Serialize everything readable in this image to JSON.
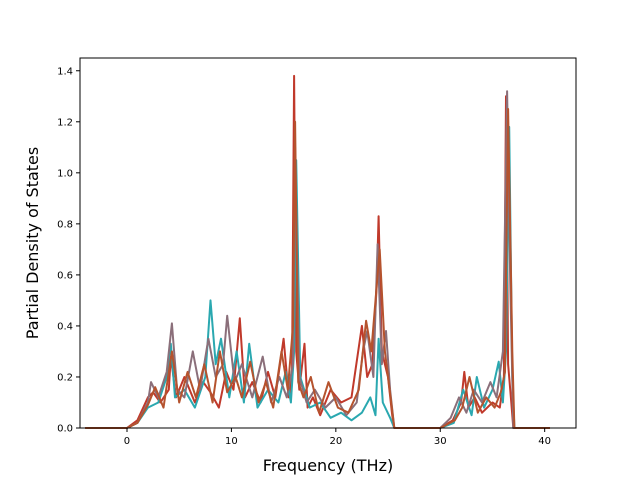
{
  "chart_data": {
    "type": "line",
    "title": "",
    "xlabel": "Frequency (THz)",
    "ylabel": "Partial Density of States",
    "xlim": [
      -4.5,
      43
    ],
    "ylim": [
      0,
      1.45
    ],
    "xticks": [
      0,
      10,
      20,
      30,
      40
    ],
    "yticks": [
      0.0,
      0.2,
      0.4,
      0.6,
      0.8,
      1.0,
      1.2,
      1.4
    ],
    "xtick_labels": [
      "0",
      "10",
      "20",
      "30",
      "40"
    ],
    "ytick_labels": [
      "0.0",
      "0.2",
      "0.4",
      "0.6",
      "0.8",
      "1.0",
      "1.2",
      "1.4"
    ],
    "grid": false,
    "legend": "none",
    "colors": [
      "#c0392b",
      "#2aa8b0",
      "#8b6f7a",
      "#b5532e"
    ],
    "series": [
      {
        "color": "#c0392b",
        "x": [
          -4,
          0,
          1,
          2,
          2.5,
          3.2,
          4.0,
          4.2,
          4.7,
          5.5,
          6.5,
          7.3,
          8.0,
          8.8,
          9.5,
          10.2,
          10.8,
          11.3,
          12.0,
          12.8,
          13.5,
          14.2,
          15.0,
          15.5,
          15.8,
          16.0,
          16.2,
          16.5,
          17.0,
          17.3,
          17.8,
          18.5,
          19.5,
          20.5,
          21.5,
          22.5,
          23.0,
          23.5,
          23.9,
          24.1,
          24.4,
          25.0,
          25.4,
          25.6,
          30,
          31.2,
          32.0,
          32.3,
          32.7,
          33.3,
          34.0,
          35.0,
          35.7,
          36.1,
          36.3,
          36.5,
          36.8,
          37.0,
          40.5
        ],
        "y": [
          0,
          0,
          0.03,
          0.12,
          0.14,
          0.1,
          0.15,
          0.28,
          0.12,
          0.2,
          0.1,
          0.18,
          0.14,
          0.08,
          0.22,
          0.15,
          0.43,
          0.12,
          0.18,
          0.1,
          0.22,
          0.12,
          0.35,
          0.12,
          0.2,
          1.38,
          0.3,
          0.15,
          0.33,
          0.08,
          0.12,
          0.05,
          0.15,
          0.1,
          0.12,
          0.4,
          0.2,
          0.25,
          0.55,
          0.83,
          0.3,
          0.2,
          0.05,
          0,
          0,
          0.03,
          0.1,
          0.22,
          0.08,
          0.12,
          0.06,
          0.1,
          0.08,
          0.2,
          1.3,
          0.25,
          0.1,
          0,
          0
        ]
      },
      {
        "color": "#2aa8b0",
        "x": [
          -4,
          0,
          1,
          2,
          3,
          3.8,
          4.2,
          4.6,
          5.5,
          6.5,
          7.5,
          8.0,
          8.5,
          9.0,
          9.8,
          10.5,
          11.2,
          11.7,
          12.5,
          13.5,
          14.5,
          15.2,
          15.7,
          16.0,
          16.2,
          16.6,
          17.5,
          18.5,
          19.5,
          20.5,
          21.5,
          22.5,
          23.3,
          23.8,
          24.1,
          24.5,
          25.2,
          25.6,
          30,
          31.3,
          32.2,
          33.0,
          33.5,
          34.2,
          35.0,
          35.6,
          36.0,
          36.3,
          36.6,
          36.9,
          37.1,
          40.5
        ],
        "y": [
          0,
          0,
          0.02,
          0.08,
          0.1,
          0.2,
          0.33,
          0.12,
          0.15,
          0.08,
          0.2,
          0.5,
          0.25,
          0.35,
          0.12,
          0.3,
          0.1,
          0.33,
          0.08,
          0.15,
          0.1,
          0.22,
          0.1,
          0.3,
          1.05,
          0.2,
          0.08,
          0.1,
          0.04,
          0.06,
          0.03,
          0.06,
          0.12,
          0.05,
          0.35,
          0.1,
          0.04,
          0,
          0,
          0.02,
          0.15,
          0.05,
          0.2,
          0.08,
          0.15,
          0.26,
          0.1,
          0.3,
          1.18,
          0.2,
          0,
          0
        ]
      },
      {
        "color": "#8b6f7a",
        "x": [
          -4,
          0,
          1,
          2,
          2.3,
          3.0,
          3.8,
          4.3,
          4.8,
          5.5,
          6.3,
          7.0,
          7.8,
          8.5,
          9.2,
          9.6,
          10.3,
          11.0,
          12.0,
          13.0,
          13.8,
          14.6,
          15.3,
          15.9,
          16.1,
          16.5,
          17.2,
          18.0,
          19.0,
          20.0,
          21.0,
          22.0,
          22.6,
          23.0,
          23.6,
          24.0,
          24.4,
          24.8,
          25.2,
          25.6,
          30,
          31.0,
          31.8,
          32.5,
          33.2,
          34.0,
          34.8,
          35.4,
          36.0,
          36.4,
          36.7,
          37.0,
          40.5
        ],
        "y": [
          0,
          0,
          0.02,
          0.1,
          0.18,
          0.12,
          0.22,
          0.41,
          0.15,
          0.12,
          0.3,
          0.15,
          0.35,
          0.2,
          0.25,
          0.44,
          0.18,
          0.25,
          0.12,
          0.28,
          0.1,
          0.2,
          0.12,
          0.25,
          1.1,
          0.2,
          0.1,
          0.15,
          0.08,
          0.12,
          0.05,
          0.1,
          0.3,
          0.38,
          0.2,
          0.72,
          0.25,
          0.38,
          0.15,
          0,
          0,
          0.04,
          0.12,
          0.06,
          0.15,
          0.1,
          0.18,
          0.12,
          0.3,
          1.32,
          0.58,
          0,
          0
        ]
      },
      {
        "color": "#b5532e",
        "x": [
          -4,
          0,
          1,
          2,
          2.7,
          3.5,
          4.3,
          5.0,
          5.8,
          6.6,
          7.4,
          8.2,
          8.9,
          9.6,
          10.4,
          11.0,
          11.8,
          12.6,
          13.3,
          14.0,
          14.8,
          15.4,
          15.9,
          16.1,
          16.4,
          16.9,
          17.6,
          18.4,
          19.3,
          20.2,
          21.2,
          22.2,
          22.9,
          23.4,
          23.8,
          24.2,
          24.7,
          25.3,
          25.6,
          30,
          31.4,
          32.1,
          32.8,
          33.6,
          34.4,
          35.2,
          35.8,
          36.2,
          36.5,
          36.9,
          37.1,
          40.5
        ],
        "y": [
          0,
          0,
          0.02,
          0.09,
          0.16,
          0.08,
          0.3,
          0.1,
          0.22,
          0.12,
          0.25,
          0.1,
          0.3,
          0.14,
          0.2,
          0.12,
          0.26,
          0.1,
          0.18,
          0.08,
          0.3,
          0.15,
          0.4,
          1.2,
          0.18,
          0.12,
          0.2,
          0.06,
          0.18,
          0.08,
          0.06,
          0.15,
          0.42,
          0.3,
          0.5,
          0.7,
          0.3,
          0.1,
          0,
          0,
          0.03,
          0.08,
          0.2,
          0.06,
          0.12,
          0.08,
          0.14,
          0.22,
          1.25,
          0.3,
          0,
          0
        ]
      }
    ]
  }
}
